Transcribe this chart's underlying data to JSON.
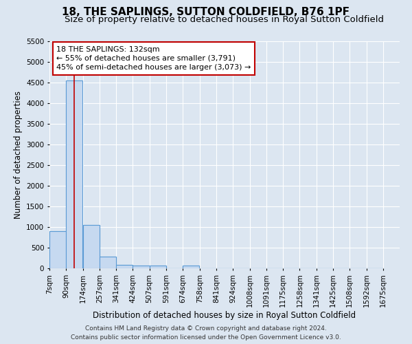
{
  "title": "18, THE SAPLINGS, SUTTON COLDFIELD, B76 1PF",
  "subtitle": "Size of property relative to detached houses in Royal Sutton Coldfield",
  "xlabel": "Distribution of detached houses by size in Royal Sutton Coldfield",
  "ylabel": "Number of detached properties",
  "footnote1": "Contains HM Land Registry data © Crown copyright and database right 2024.",
  "footnote2": "Contains public sector information licensed under the Open Government Licence v3.0.",
  "bin_labels": [
    "7sqm",
    "90sqm",
    "174sqm",
    "257sqm",
    "341sqm",
    "424sqm",
    "507sqm",
    "591sqm",
    "674sqm",
    "758sqm",
    "841sqm",
    "924sqm",
    "1008sqm",
    "1091sqm",
    "1175sqm",
    "1258sqm",
    "1341sqm",
    "1425sqm",
    "1508sqm",
    "1592sqm",
    "1675sqm"
  ],
  "bin_left_edges": [
    7,
    90,
    174,
    257,
    341,
    424,
    507,
    591,
    674,
    758,
    841,
    924,
    1008,
    1091,
    1175,
    1258,
    1341,
    1425,
    1508,
    1592,
    1675
  ],
  "bar_heights": [
    900,
    4550,
    1050,
    290,
    80,
    70,
    60,
    0,
    70,
    0,
    0,
    0,
    0,
    0,
    0,
    0,
    0,
    0,
    0,
    0
  ],
  "bar_color": "#c6d9f0",
  "bar_edge_color": "#5b9bd5",
  "background_color": "#dce6f1",
  "grid_color": "#ffffff",
  "property_size": 132,
  "vline_color": "#c00000",
  "annotation_line1": "18 THE SAPLINGS: 132sqm",
  "annotation_line2": "← 55% of detached houses are smaller (3,791)",
  "annotation_line3": "45% of semi-detached houses are larger (3,073) →",
  "annotation_box_color": "#c00000",
  "annotation_bg": "#ffffff",
  "ylim": [
    0,
    5500
  ],
  "yticks": [
    0,
    500,
    1000,
    1500,
    2000,
    2500,
    3000,
    3500,
    4000,
    4500,
    5000,
    5500
  ],
  "title_fontsize": 11,
  "subtitle_fontsize": 9.5,
  "axis_label_fontsize": 8.5,
  "tick_fontsize": 7.5,
  "annotation_fontsize": 8,
  "footnote_fontsize": 6.5
}
